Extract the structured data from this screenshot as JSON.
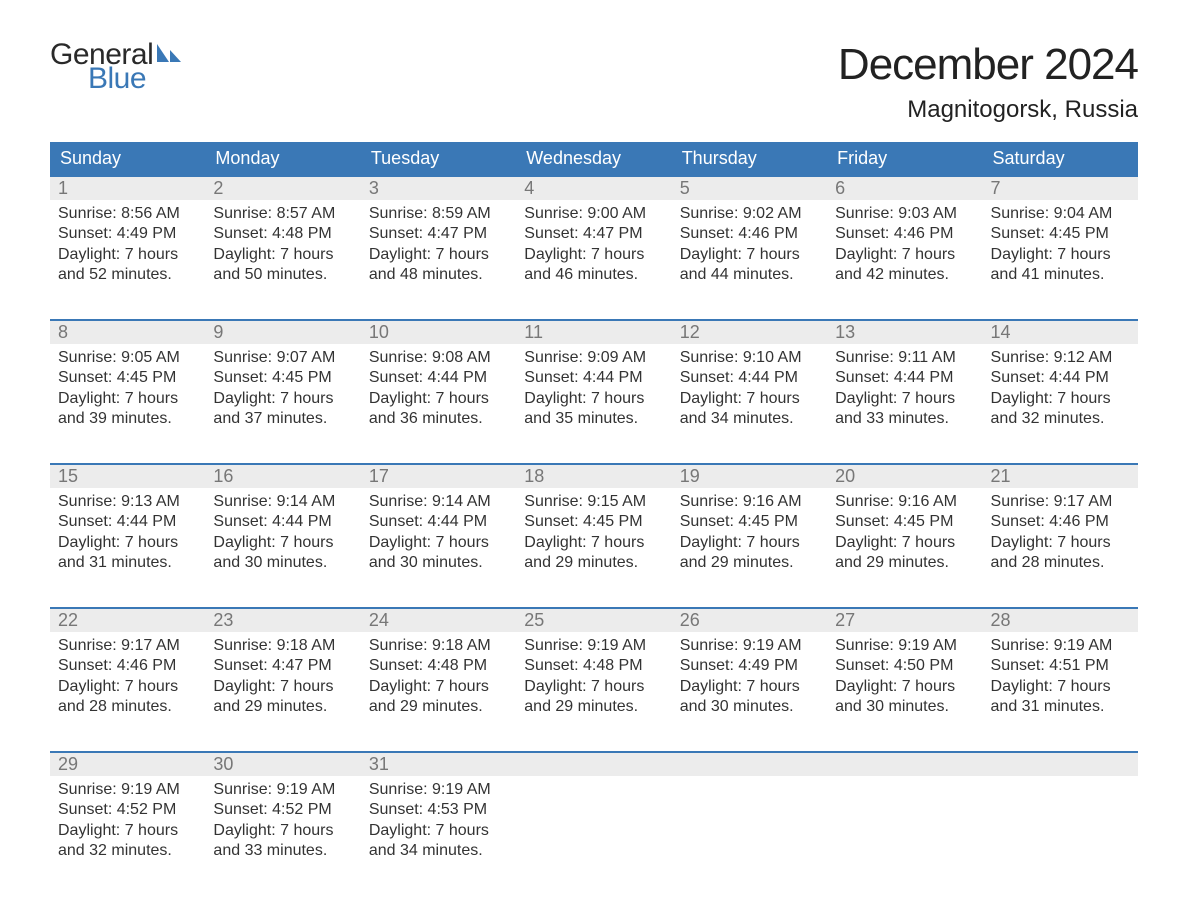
{
  "brand": {
    "word1": "General",
    "word2": "Blue",
    "accent_color": "#3a78b6",
    "text_color": "#2a2a2a"
  },
  "header": {
    "month_title": "December 2024",
    "location": "Magnitogorsk, Russia"
  },
  "style": {
    "header_bg": "#3a78b6",
    "header_fg": "#ffffff",
    "daynum_bg": "#ececec",
    "daynum_fg": "#777777",
    "body_fg": "#333333",
    "week_border": "#3a78b6"
  },
  "daynames": [
    "Sunday",
    "Monday",
    "Tuesday",
    "Wednesday",
    "Thursday",
    "Friday",
    "Saturday"
  ],
  "weeks": [
    [
      {
        "n": "1",
        "sr": "8:56 AM",
        "ss": "4:49 PM",
        "dl": "7 hours and 52 minutes."
      },
      {
        "n": "2",
        "sr": "8:57 AM",
        "ss": "4:48 PM",
        "dl": "7 hours and 50 minutes."
      },
      {
        "n": "3",
        "sr": "8:59 AM",
        "ss": "4:47 PM",
        "dl": "7 hours and 48 minutes."
      },
      {
        "n": "4",
        "sr": "9:00 AM",
        "ss": "4:47 PM",
        "dl": "7 hours and 46 minutes."
      },
      {
        "n": "5",
        "sr": "9:02 AM",
        "ss": "4:46 PM",
        "dl": "7 hours and 44 minutes."
      },
      {
        "n": "6",
        "sr": "9:03 AM",
        "ss": "4:46 PM",
        "dl": "7 hours and 42 minutes."
      },
      {
        "n": "7",
        "sr": "9:04 AM",
        "ss": "4:45 PM",
        "dl": "7 hours and 41 minutes."
      }
    ],
    [
      {
        "n": "8",
        "sr": "9:05 AM",
        "ss": "4:45 PM",
        "dl": "7 hours and 39 minutes."
      },
      {
        "n": "9",
        "sr": "9:07 AM",
        "ss": "4:45 PM",
        "dl": "7 hours and 37 minutes."
      },
      {
        "n": "10",
        "sr": "9:08 AM",
        "ss": "4:44 PM",
        "dl": "7 hours and 36 minutes."
      },
      {
        "n": "11",
        "sr": "9:09 AM",
        "ss": "4:44 PM",
        "dl": "7 hours and 35 minutes."
      },
      {
        "n": "12",
        "sr": "9:10 AM",
        "ss": "4:44 PM",
        "dl": "7 hours and 34 minutes."
      },
      {
        "n": "13",
        "sr": "9:11 AM",
        "ss": "4:44 PM",
        "dl": "7 hours and 33 minutes."
      },
      {
        "n": "14",
        "sr": "9:12 AM",
        "ss": "4:44 PM",
        "dl": "7 hours and 32 minutes."
      }
    ],
    [
      {
        "n": "15",
        "sr": "9:13 AM",
        "ss": "4:44 PM",
        "dl": "7 hours and 31 minutes."
      },
      {
        "n": "16",
        "sr": "9:14 AM",
        "ss": "4:44 PM",
        "dl": "7 hours and 30 minutes."
      },
      {
        "n": "17",
        "sr": "9:14 AM",
        "ss": "4:44 PM",
        "dl": "7 hours and 30 minutes."
      },
      {
        "n": "18",
        "sr": "9:15 AM",
        "ss": "4:45 PM",
        "dl": "7 hours and 29 minutes."
      },
      {
        "n": "19",
        "sr": "9:16 AM",
        "ss": "4:45 PM",
        "dl": "7 hours and 29 minutes."
      },
      {
        "n": "20",
        "sr": "9:16 AM",
        "ss": "4:45 PM",
        "dl": "7 hours and 29 minutes."
      },
      {
        "n": "21",
        "sr": "9:17 AM",
        "ss": "4:46 PM",
        "dl": "7 hours and 28 minutes."
      }
    ],
    [
      {
        "n": "22",
        "sr": "9:17 AM",
        "ss": "4:46 PM",
        "dl": "7 hours and 28 minutes."
      },
      {
        "n": "23",
        "sr": "9:18 AM",
        "ss": "4:47 PM",
        "dl": "7 hours and 29 minutes."
      },
      {
        "n": "24",
        "sr": "9:18 AM",
        "ss": "4:48 PM",
        "dl": "7 hours and 29 minutes."
      },
      {
        "n": "25",
        "sr": "9:19 AM",
        "ss": "4:48 PM",
        "dl": "7 hours and 29 minutes."
      },
      {
        "n": "26",
        "sr": "9:19 AM",
        "ss": "4:49 PM",
        "dl": "7 hours and 30 minutes."
      },
      {
        "n": "27",
        "sr": "9:19 AM",
        "ss": "4:50 PM",
        "dl": "7 hours and 30 minutes."
      },
      {
        "n": "28",
        "sr": "9:19 AM",
        "ss": "4:51 PM",
        "dl": "7 hours and 31 minutes."
      }
    ],
    [
      {
        "n": "29",
        "sr": "9:19 AM",
        "ss": "4:52 PM",
        "dl": "7 hours and 32 minutes."
      },
      {
        "n": "30",
        "sr": "9:19 AM",
        "ss": "4:52 PM",
        "dl": "7 hours and 33 minutes."
      },
      {
        "n": "31",
        "sr": "9:19 AM",
        "ss": "4:53 PM",
        "dl": "7 hours and 34 minutes."
      },
      null,
      null,
      null,
      null
    ]
  ],
  "labels": {
    "sunrise": "Sunrise:",
    "sunset": "Sunset:",
    "daylight": "Daylight:"
  }
}
